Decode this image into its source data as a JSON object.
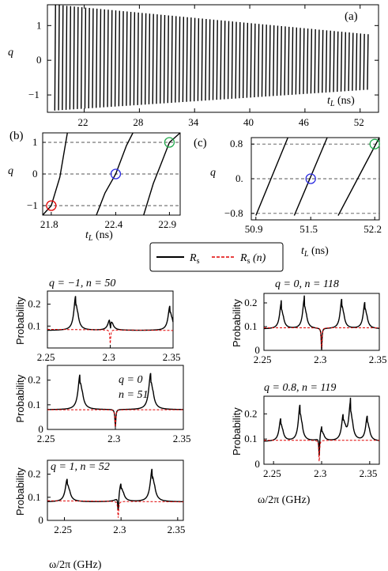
{
  "chart_data": [
    {
      "id": "a",
      "type": "line",
      "panel_label": "(a)",
      "ylabel": "q",
      "xlabel": "t_L (ns)",
      "xlim": [
        18,
        54
      ],
      "ylim": [
        -1.5,
        1.6
      ],
      "xticks": [
        22,
        28,
        34,
        40,
        46,
        52
      ],
      "yticks": [
        -1,
        0,
        1
      ],
      "series": [
        {
          "description": "sawtooth q(t_L) with ~84 periods, amplitude decaying from 1.6 to 0.75 (upper) and -1.45 to -0.85 (lower)",
          "x_start": 18.8,
          "x_end": 53.2,
          "period_count": 84,
          "upper_start": 1.6,
          "upper_end": 0.75,
          "lower_start": -1.45,
          "lower_end": -0.85
        }
      ]
    },
    {
      "id": "b",
      "type": "line",
      "panel_label": "(b)",
      "ylabel": "q",
      "xlabel": "t_L (ns)",
      "xlim": [
        21.72,
        23.0
      ],
      "ylim": [
        -1.3,
        1.3
      ],
      "xticks": [
        21.8,
        22.4,
        22.9
      ],
      "yticks": [
        -1,
        0,
        1
      ],
      "gridlines_y": [
        -1,
        0,
        1
      ],
      "series": [
        {
          "x": [
            21.72,
            21.8,
            21.88,
            21.95
          ],
          "y": [
            -1.3,
            -1.0,
            -0.1,
            1.3
          ]
        },
        {
          "x": [
            22.22,
            22.3,
            22.4,
            22.5,
            22.56
          ],
          "y": [
            -1.3,
            -0.6,
            0.0,
            0.9,
            1.3
          ]
        },
        {
          "x": [
            22.66,
            22.75,
            22.82,
            22.9,
            23.0
          ],
          "y": [
            -1.3,
            -0.3,
            0.3,
            1.0,
            1.3
          ]
        }
      ],
      "markers": [
        {
          "x": 21.8,
          "y": -1,
          "color": "#e00000"
        },
        {
          "x": 22.4,
          "y": 0,
          "color": "#2a2ae0"
        },
        {
          "x": 22.9,
          "y": 1,
          "color": "#1fa84a"
        }
      ]
    },
    {
      "id": "c",
      "type": "line",
      "panel_label": "(c)",
      "ylabel": "q",
      "xlabel": "t_L (ns)",
      "xlim": [
        50.85,
        52.25
      ],
      "ylim": [
        -0.95,
        0.95
      ],
      "xticks": [
        50.9,
        51.5,
        52.2
      ],
      "ytick_labels": [
        "-0.8",
        "0.",
        "0.8"
      ],
      "yticks": [
        -0.8,
        0,
        0.8
      ],
      "gridlines_y": [
        -0.8,
        0,
        0.8
      ],
      "series": [
        {
          "x": [
            50.9,
            51.25
          ],
          "y": [
            -0.85,
            0.95
          ]
        },
        {
          "x": [
            51.32,
            51.68
          ],
          "y": [
            -0.85,
            0.95
          ]
        },
        {
          "x": [
            51.8,
            52.25
          ],
          "y": [
            -0.85,
            0.95
          ]
        }
      ],
      "markers": [
        {
          "x": 51.5,
          "y": 0,
          "color": "#2a2ae0"
        },
        {
          "x": 52.2,
          "y": 0.8,
          "color": "#1fa84a"
        }
      ]
    },
    {
      "id": "legend",
      "entries": [
        {
          "label": "R_s",
          "style": "solid",
          "color": "#000000"
        },
        {
          "label": "R_s (n)",
          "style": "dashed",
          "color": "#e00000"
        }
      ]
    },
    {
      "id": "p1",
      "type": "line",
      "title": "q = −1, n = 50",
      "title_color": "#e00000",
      "xlim": [
        2.25,
        2.35
      ],
      "ylim": [
        0,
        0.26
      ],
      "ylabel": "Probability",
      "xticks": [
        2.25,
        2.3,
        2.35
      ],
      "yticks": [
        0.1,
        0.2
      ],
      "peaks": [
        [
          2.2725,
          0.255
        ],
        [
          2.3,
          0.16
        ],
        [
          2.3475,
          0.205
        ]
      ],
      "base": 0.08,
      "dip": [
        2.3,
        0.02
      ],
      "red_base": [
        0.085,
        0.08
      ]
    },
    {
      "id": "p2",
      "type": "line",
      "title": "q = 0",
      "title2": "n = 51",
      "title_color": "#2a2ae0",
      "xlim": [
        2.25,
        2.35
      ],
      "ylim": [
        0,
        0.26
      ],
      "ylabel": "Probability",
      "xticks": [
        2.25,
        2.3,
        2.35
      ],
      "yticks": [
        0,
        0.1,
        0.2
      ],
      "peaks": [
        [
          2.274,
          0.24
        ],
        [
          2.326,
          0.245
        ]
      ],
      "base": 0.08,
      "dip": [
        2.3,
        0.01
      ],
      "red_base": [
        0.08,
        0.08
      ]
    },
    {
      "id": "p3",
      "type": "line",
      "title": "q = 1, n = 52",
      "title_color": "#1fa84a",
      "xlim": [
        2.235,
        2.355
      ],
      "ylim": [
        0,
        0.26
      ],
      "ylabel": "Probability",
      "xticks": [
        2.25,
        2.3,
        2.35
      ],
      "yticks": [
        0,
        0.1,
        0.2
      ],
      "peaks": [
        [
          2.2525,
          0.19
        ],
        [
          2.3,
          0.17
        ],
        [
          2.3275,
          0.24
        ]
      ],
      "base": 0.08,
      "dip": [
        2.2975,
        0.01
      ],
      "red_base": [
        0.085,
        0.08
      ]
    },
    {
      "id": "p4",
      "type": "line",
      "title": "q = 0, n = 118",
      "title_color": "#2a2ae0",
      "xlim": [
        2.25,
        2.35
      ],
      "ylim": [
        0,
        0.24
      ],
      "ylabel": "Probability",
      "xticks": [
        2.25,
        2.3,
        2.35
      ],
      "yticks": [
        0,
        0.1,
        0.2
      ],
      "peaks": [
        [
          2.265,
          0.21
        ],
        [
          2.285,
          0.23
        ],
        [
          2.3175,
          0.23
        ],
        [
          2.3375,
          0.215
        ]
      ],
      "base": 0.09,
      "dip": [
        2.3,
        0.0
      ],
      "red_base": [
        0.095,
        0.095
      ]
    },
    {
      "id": "p5",
      "type": "line",
      "title": "q = 0.8, n = 119",
      "title_color": "#1fa84a",
      "xlim": [
        2.24,
        2.36
      ],
      "ylim": [
        0,
        0.27
      ],
      "ylabel": "Probability",
      "xticks": [
        2.25,
        2.3,
        2.35
      ],
      "yticks": [
        0,
        0.1,
        0.2
      ],
      "peaks": [
        [
          2.2575,
          0.19
        ],
        [
          2.2775,
          0.25
        ],
        [
          2.3,
          0.15
        ],
        [
          2.3225,
          0.2
        ],
        [
          2.33,
          0.255
        ],
        [
          2.3475,
          0.2
        ]
      ],
      "base": 0.09,
      "dip": [
        2.2975,
        0.01
      ],
      "red_base": [
        0.095,
        0.095
      ]
    }
  ],
  "text": {
    "a_label": "(a)",
    "b_label": "(b)",
    "c_label": "(c)",
    "q": "q",
    "tl_a": "t",
    "tl_sub": "L",
    "tl_unit": " (ns)",
    "prob": "Probability",
    "xlabel_bottom": "ω/2π (GHz)",
    "legend_rs": "R",
    "legend_sub": "s",
    "legend_rsn_suffix": " (n)"
  }
}
